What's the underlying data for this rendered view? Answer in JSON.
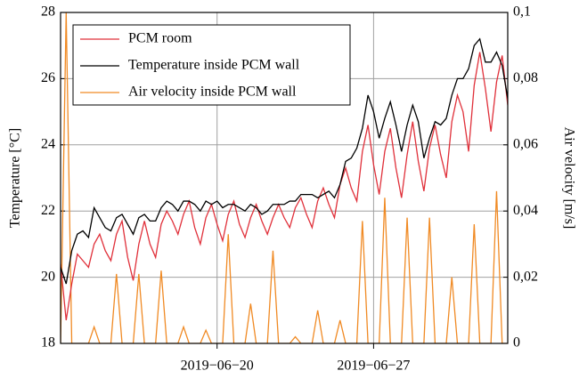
{
  "chart_data": {
    "type": "line",
    "y_label": "Temperature [°C]",
    "y2_label": "Air velocity [m/s]",
    "x": [
      "2019-06-13 00:00",
      "2019-06-13 06:00",
      "2019-06-13 12:00",
      "2019-06-13 18:00",
      "2019-06-14 00:00",
      "2019-06-14 06:00",
      "2019-06-14 12:00",
      "2019-06-14 18:00",
      "2019-06-15 00:00",
      "2019-06-15 06:00",
      "2019-06-15 12:00",
      "2019-06-15 18:00",
      "2019-06-16 00:00",
      "2019-06-16 06:00",
      "2019-06-16 12:00",
      "2019-06-16 18:00",
      "2019-06-17 00:00",
      "2019-06-17 06:00",
      "2019-06-17 12:00",
      "2019-06-17 18:00",
      "2019-06-18 00:00",
      "2019-06-18 06:00",
      "2019-06-18 12:00",
      "2019-06-18 18:00",
      "2019-06-19 00:00",
      "2019-06-19 06:00",
      "2019-06-19 12:00",
      "2019-06-19 18:00",
      "2019-06-20 00:00",
      "2019-06-20 06:00",
      "2019-06-20 12:00",
      "2019-06-20 18:00",
      "2019-06-21 00:00",
      "2019-06-21 06:00",
      "2019-06-21 12:00",
      "2019-06-21 18:00",
      "2019-06-22 00:00",
      "2019-06-22 06:00",
      "2019-06-22 12:00",
      "2019-06-22 18:00",
      "2019-06-23 00:00",
      "2019-06-23 06:00",
      "2019-06-23 12:00",
      "2019-06-23 18:00",
      "2019-06-24 00:00",
      "2019-06-24 06:00",
      "2019-06-24 12:00",
      "2019-06-24 18:00",
      "2019-06-25 00:00",
      "2019-06-25 06:00",
      "2019-06-25 12:00",
      "2019-06-25 18:00",
      "2019-06-26 00:00",
      "2019-06-26 06:00",
      "2019-06-26 12:00",
      "2019-06-26 18:00",
      "2019-06-27 00:00",
      "2019-06-27 06:00",
      "2019-06-27 12:00",
      "2019-06-27 18:00",
      "2019-06-28 00:00",
      "2019-06-28 06:00",
      "2019-06-28 12:00",
      "2019-06-28 18:00",
      "2019-06-29 00:00",
      "2019-06-29 06:00",
      "2019-06-29 12:00",
      "2019-06-29 18:00",
      "2019-06-30 00:00",
      "2019-06-30 06:00",
      "2019-06-30 12:00",
      "2019-06-30 18:00",
      "2019-07-01 00:00",
      "2019-07-01 06:00",
      "2019-07-01 12:00",
      "2019-07-01 18:00",
      "2019-07-02 00:00",
      "2019-07-02 06:00",
      "2019-07-02 12:00",
      "2019-07-02 18:00",
      "2019-07-03 00:00"
    ],
    "series": [
      {
        "name": "PCM room",
        "color": "#e0303a",
        "values": [
          20.4,
          18.7,
          19.8,
          20.7,
          20.5,
          20.3,
          21.0,
          21.3,
          20.8,
          20.5,
          21.3,
          21.7,
          20.6,
          19.9,
          21.0,
          21.7,
          21.0,
          20.6,
          21.6,
          22.0,
          21.7,
          21.3,
          21.9,
          22.3,
          21.5,
          21.0,
          21.8,
          22.2,
          21.6,
          21.1,
          21.9,
          22.3,
          21.6,
          21.2,
          21.8,
          22.2,
          21.7,
          21.3,
          21.8,
          22.2,
          21.8,
          21.5,
          22.1,
          22.4,
          21.9,
          21.5,
          22.3,
          22.7,
          22.2,
          21.8,
          22.8,
          23.3,
          22.7,
          22.3,
          23.8,
          24.6,
          23.4,
          22.5,
          23.8,
          24.5,
          23.3,
          22.4,
          23.7,
          24.7,
          23.5,
          22.6,
          23.9,
          24.6,
          23.7,
          23.0,
          24.7,
          25.5,
          25.0,
          23.8,
          25.8,
          26.8,
          25.7,
          24.4,
          25.9,
          26.7,
          25.2
        ]
      },
      {
        "name": "Temperature inside PCM wall",
        "color": "#000000",
        "values": [
          20.3,
          19.8,
          20.8,
          21.3,
          21.4,
          21.2,
          22.1,
          21.8,
          21.5,
          21.4,
          21.8,
          21.9,
          21.6,
          21.3,
          21.8,
          21.9,
          21.7,
          21.7,
          22.1,
          22.3,
          22.2,
          22.0,
          22.3,
          22.3,
          22.2,
          22.0,
          22.3,
          22.2,
          22.3,
          22.1,
          22.2,
          22.2,
          22.1,
          22.0,
          22.2,
          22.1,
          21.9,
          22.0,
          22.2,
          22.2,
          22.2,
          22.3,
          22.3,
          22.5,
          22.5,
          22.5,
          22.4,
          22.5,
          22.6,
          22.4,
          22.8,
          23.5,
          23.6,
          23.9,
          24.5,
          25.5,
          25.0,
          24.2,
          24.8,
          25.3,
          24.6,
          23.8,
          24.6,
          25.2,
          24.7,
          23.6,
          24.2,
          24.7,
          24.6,
          24.8,
          25.5,
          26.0,
          26.0,
          26.3,
          27.0,
          27.2,
          26.5,
          26.5,
          26.8,
          26.4,
          25.4
        ]
      },
      {
        "name": "Air velocity inside PCM wall",
        "color": "#f08a24",
        "axis": "y2",
        "values": [
          0,
          0.1,
          0,
          0,
          0,
          0,
          0.005,
          0,
          0,
          0,
          0.021,
          0,
          0,
          0,
          0.021,
          0,
          0,
          0,
          0.022,
          0,
          0,
          0,
          0.005,
          0,
          0,
          0,
          0.004,
          0,
          0,
          0,
          0.033,
          0,
          0,
          0,
          0.012,
          0,
          0,
          0,
          0.028,
          0,
          0,
          0,
          0.002,
          0,
          0,
          0,
          0.01,
          0,
          0,
          0,
          0.007,
          0,
          0,
          0,
          0.037,
          0,
          0,
          0,
          0.044,
          0,
          0,
          0,
          0.038,
          0,
          0,
          0,
          0.038,
          0,
          0,
          0,
          0.02,
          0,
          0,
          0,
          0.036,
          0,
          0,
          0,
          0.046,
          0,
          0
        ]
      }
    ],
    "xlim": [
      "2019-06-13",
      "2019-07-03"
    ],
    "xticks": [
      {
        "value": "2019-06-20",
        "label": "2019−06−20"
      },
      {
        "value": "2019-06-27",
        "label": "2019−06−27"
      }
    ],
    "ylim": [
      18,
      28
    ],
    "yticks": [
      18,
      20,
      22,
      24,
      26,
      28
    ],
    "y2lim": [
      0,
      0.1
    ],
    "y2ticks": [
      0,
      {
        "value": 0.02,
        "label": "0,02"
      },
      {
        "value": 0.04,
        "label": "0,04"
      },
      {
        "value": 0.06,
        "label": "0,06"
      },
      {
        "value": 0.08,
        "label": "0,08"
      },
      {
        "value": 0.1,
        "label": "0,1"
      }
    ],
    "grid": true,
    "legend": "upper left"
  }
}
